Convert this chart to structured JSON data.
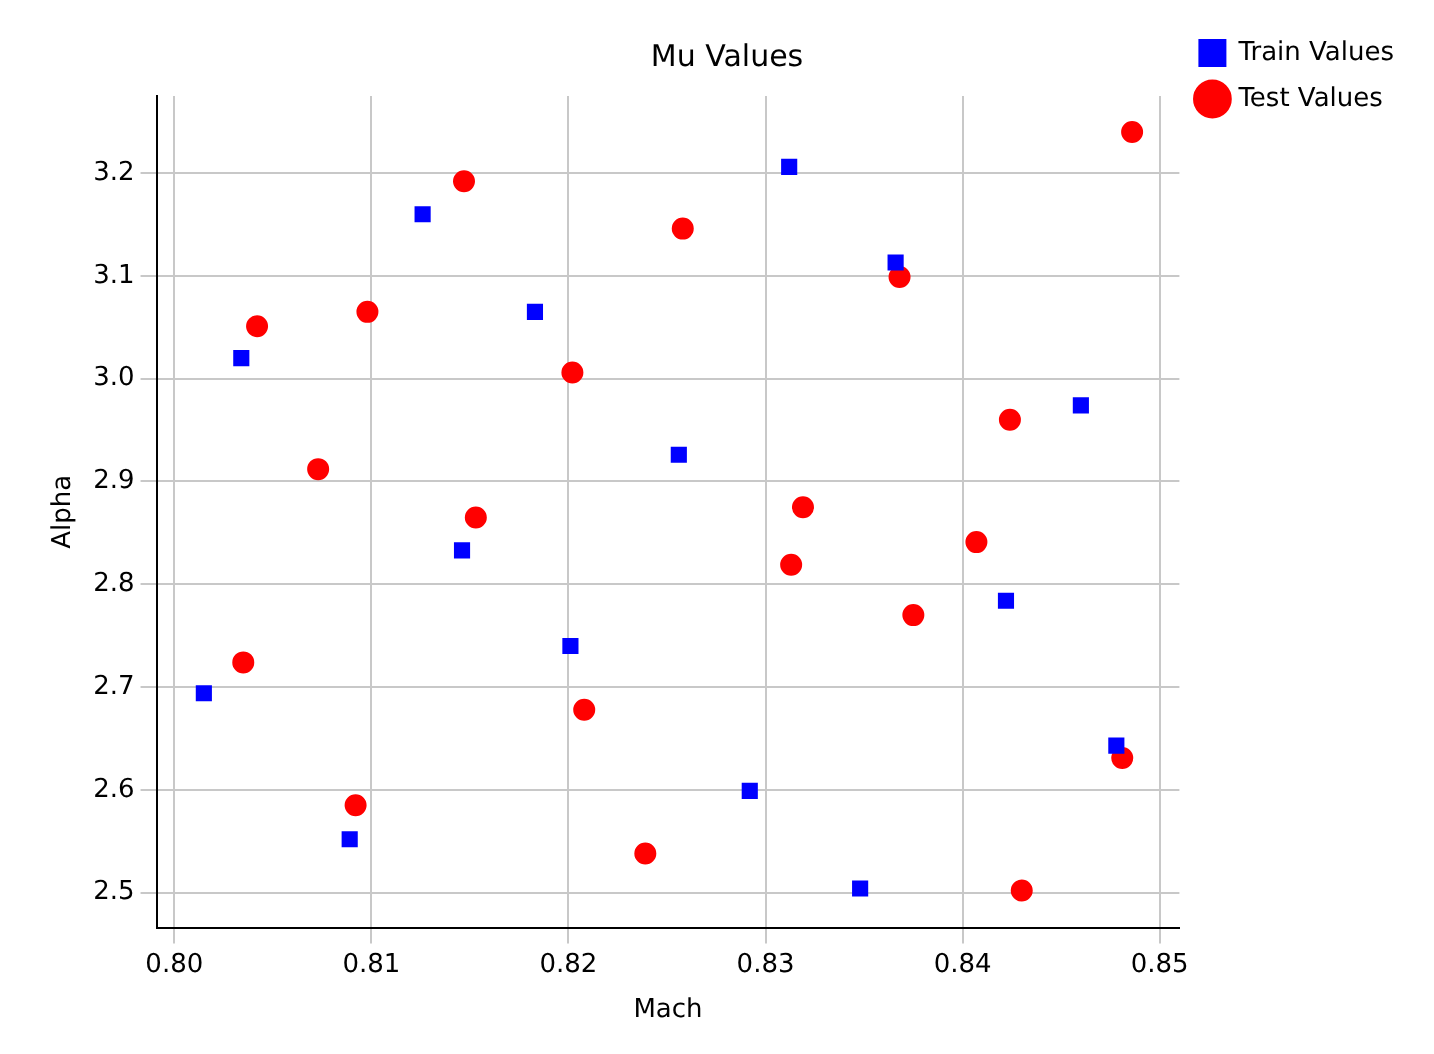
{
  "chart_data": {
    "type": "scatter",
    "title": "Mu Values",
    "xlabel": "Mach",
    "ylabel": "Alpha",
    "xlim": [
      0.7991,
      0.851
    ],
    "ylim": [
      2.466,
      3.275
    ],
    "xticks": [
      {
        "value": 0.8,
        "label": "0.80"
      },
      {
        "value": 0.81,
        "label": "0.81"
      },
      {
        "value": 0.82,
        "label": "0.82"
      },
      {
        "value": 0.83,
        "label": "0.83"
      },
      {
        "value": 0.84,
        "label": "0.84"
      },
      {
        "value": 0.85,
        "label": "0.85"
      }
    ],
    "yticks": [
      {
        "value": 2.5,
        "label": "2.5"
      },
      {
        "value": 2.6,
        "label": "2.6"
      },
      {
        "value": 2.7,
        "label": "2.7"
      },
      {
        "value": 2.8,
        "label": "2.8"
      },
      {
        "value": 2.9,
        "label": "2.9"
      },
      {
        "value": 3.0,
        "label": "3.0"
      },
      {
        "value": 3.1,
        "label": "3.1"
      },
      {
        "value": 3.2,
        "label": "3.2"
      }
    ],
    "grid": true,
    "legend": "top right",
    "series": [
      {
        "name": "Train Values",
        "color": "#0000ff",
        "marker": "square",
        "x": [
          0.8015,
          0.8034,
          0.8089,
          0.8126,
          0.8146,
          0.8183,
          0.8201,
          0.8256,
          0.8292,
          0.8312,
          0.8366,
          0.8348,
          0.8422,
          0.846,
          0.8478
        ],
        "values": [
          2.694,
          3.02,
          2.552,
          3.16,
          2.833,
          3.065,
          2.74,
          2.926,
          2.599,
          3.206,
          3.113,
          2.504,
          2.784,
          2.974,
          2.643
        ]
      },
      {
        "name": "Test Values",
        "color": "#ff0000",
        "marker": "circle",
        "x": [
          0.8042,
          0.8035,
          0.8073,
          0.8092,
          0.8098,
          0.8147,
          0.8153,
          0.8202,
          0.8208,
          0.8239,
          0.8258,
          0.8313,
          0.8319,
          0.8368,
          0.8375,
          0.8407,
          0.8424,
          0.843,
          0.8481,
          0.8486
        ],
        "values": [
          3.051,
          2.724,
          2.912,
          2.585,
          3.065,
          3.192,
          2.865,
          3.006,
          2.678,
          2.538,
          3.146,
          2.819,
          2.875,
          3.099,
          2.77,
          2.841,
          2.96,
          2.502,
          2.631,
          3.24
        ]
      }
    ]
  }
}
